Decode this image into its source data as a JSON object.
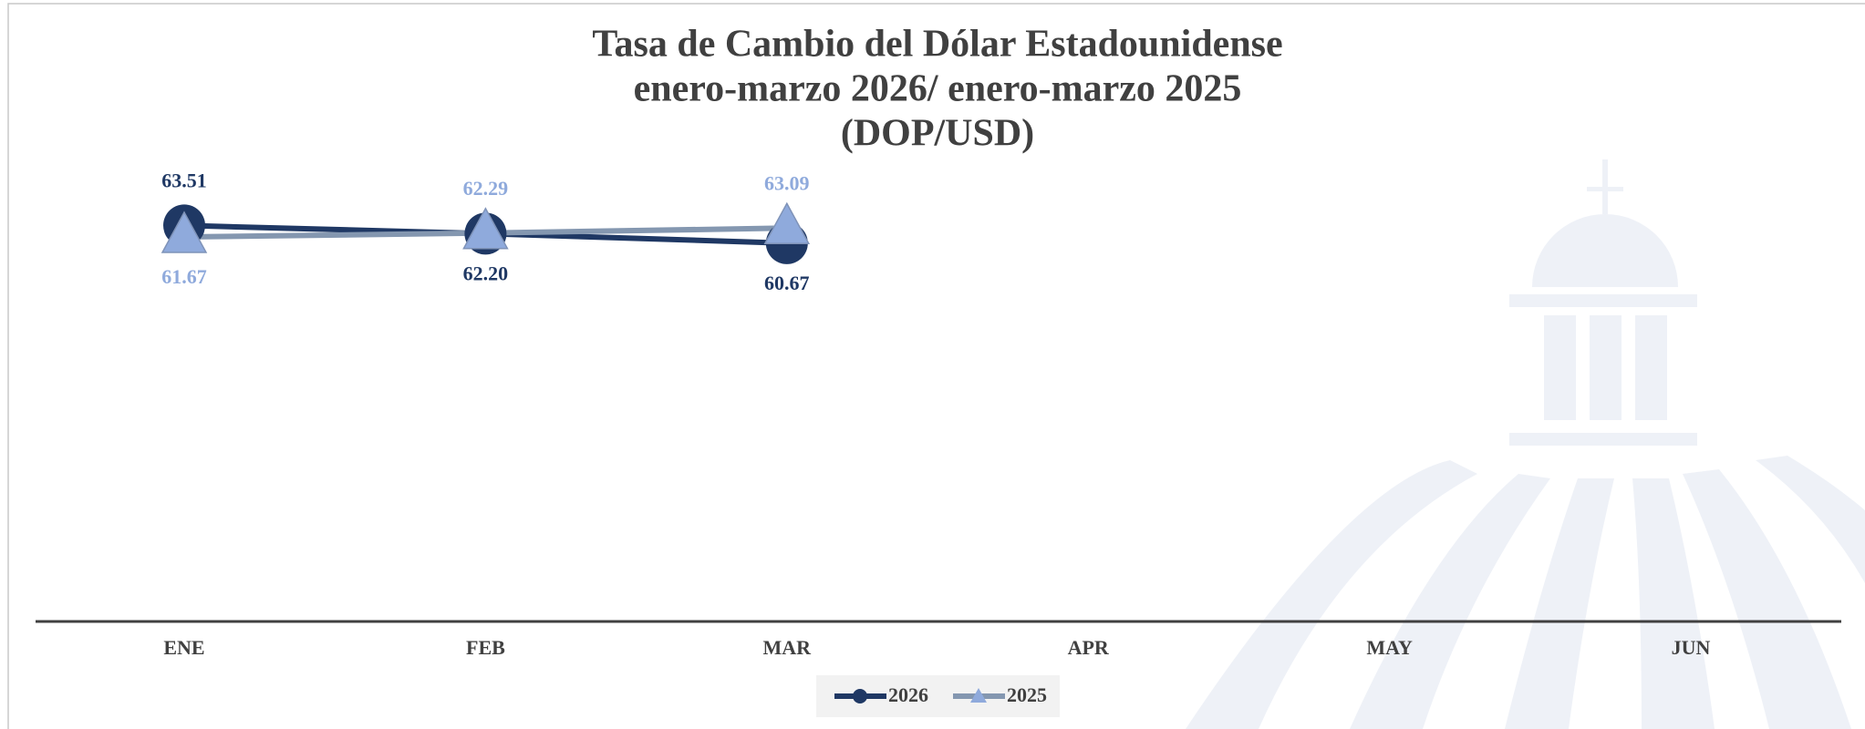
{
  "chart_data": {
    "type": "line",
    "title": [
      "Tasa de Cambio del Dólar Estadounidense",
      "enero-marzo 2026/ enero-marzo 2025",
      "(DOP/USD)"
    ],
    "categories": [
      "ENE",
      "FEB",
      "MAR",
      "APR",
      "MAY",
      "JUN"
    ],
    "ylim": [
      0,
      70
    ],
    "series": [
      {
        "name": "2026",
        "color": "#1f3864",
        "marker": "circle",
        "values": [
          63.51,
          62.2,
          60.67,
          null,
          null,
          null
        ],
        "value_labels": [
          "63.51",
          "62.20",
          "60.67",
          null,
          null,
          null
        ]
      },
      {
        "name": "2025",
        "color": "#8faadc",
        "marker": "triangle",
        "values": [
          61.67,
          62.29,
          63.09,
          null,
          null,
          null
        ],
        "value_labels": [
          "61.67",
          "62.29",
          "63.09",
          null,
          null,
          null
        ]
      }
    ],
    "legend": "bottom"
  }
}
